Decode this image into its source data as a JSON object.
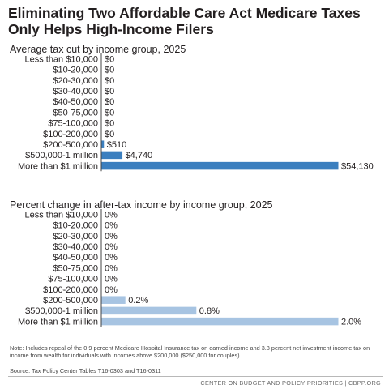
{
  "title": "Eliminating Two Affordable Care Act Medicare Taxes Only Helps High-Income Filers",
  "chart_data": [
    {
      "type": "bar",
      "orientation": "horizontal",
      "title": "Average tax cut by income group, 2025",
      "categories": [
        "Less than $10,000",
        "$10-20,000",
        "$20-30,000",
        "$30-40,000",
        "$40-50,000",
        "$50-75,000",
        "$75-100,000",
        "$100-200,000",
        "$200-500,000",
        "$500,000-1 million",
        "More than $1 million"
      ],
      "values": [
        0,
        0,
        0,
        0,
        0,
        0,
        0,
        0,
        510,
        4740,
        54130
      ],
      "data_labels": [
        "$0",
        "$0",
        "$0",
        "$0",
        "$0",
        "$0",
        "$0",
        "$0",
        "$510",
        "$4,740",
        "$54,130"
      ],
      "xlim": [
        0,
        54130
      ],
      "color": "#3b7fbf",
      "grid": false
    },
    {
      "type": "bar",
      "orientation": "horizontal",
      "title": "Percent change in after-tax income by income group, 2025",
      "categories": [
        "Less than $10,000",
        "$10-20,000",
        "$20-30,000",
        "$30-40,000",
        "$40-50,000",
        "$50-75,000",
        "$75-100,000",
        "$100-200,000",
        "$200-500,000",
        "$500,000-1 million",
        "More than $1 million"
      ],
      "values": [
        0,
        0,
        0,
        0,
        0,
        0,
        0,
        0,
        0.2,
        0.8,
        2.0
      ],
      "data_labels": [
        "0%",
        "0%",
        "0%",
        "0%",
        "0%",
        "0%",
        "0%",
        "0%",
        "0.2%",
        "0.8%",
        "2.0%"
      ],
      "xlim": [
        0,
        2.0
      ],
      "color": "#a7c4e2",
      "grid": false
    }
  ],
  "note": "Note: Includes repeal of the 0.9 percent Medicare Hospital Insurance tax on earned income and 3.8 percent net investment income tax on income from wealth for individuals with incomes above $200,000 ($250,000 for couples).",
  "source": "Source: Tax Policy Center Tables T16-0303 and T16-0311",
  "footer": "CENTER ON BUDGET AND POLICY PRIORITIES | CBPP.ORG"
}
